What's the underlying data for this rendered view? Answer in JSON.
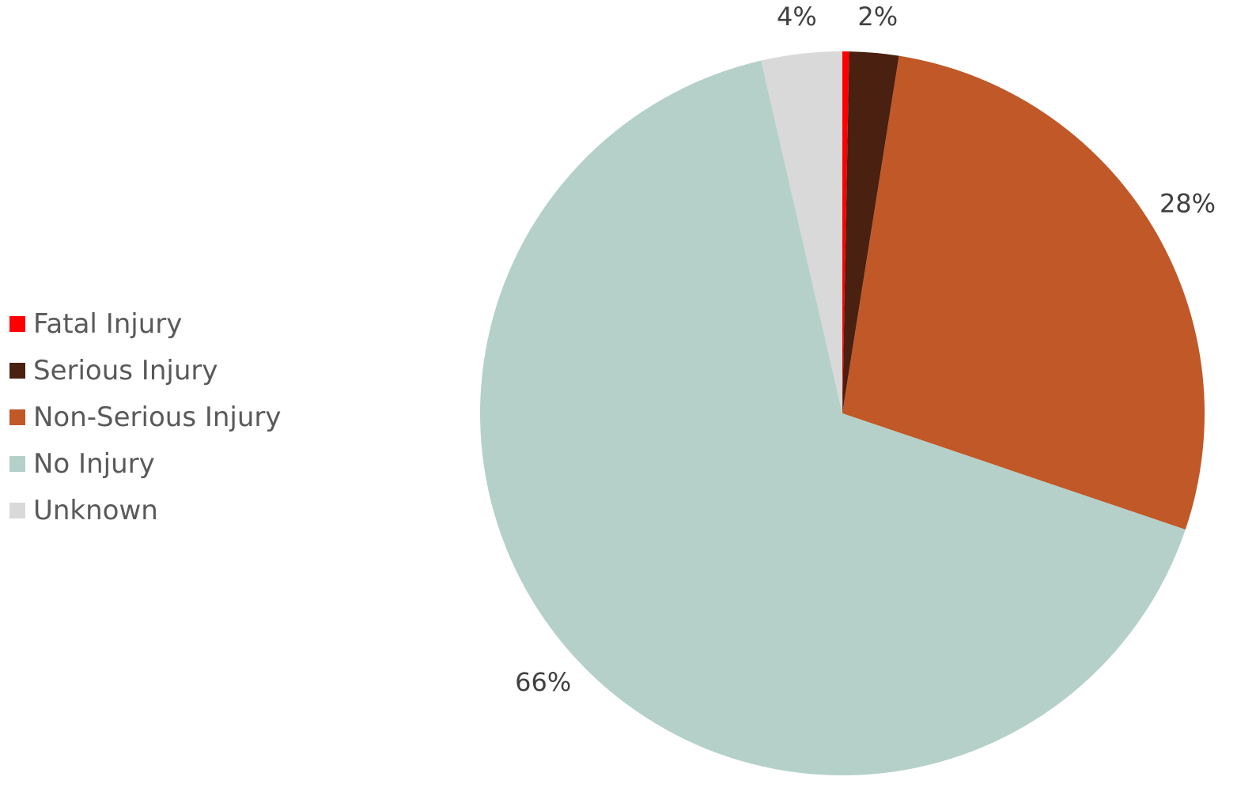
{
  "chart_data": {
    "type": "pie",
    "legend_position": "left",
    "categories": [
      "Fatal Injury",
      "Serious Injury",
      "Non-Serious Injury",
      "No Injury",
      "Unknown"
    ],
    "values": [
      0.3,
      2.2,
      27.7,
      66.2,
      3.6
    ],
    "data_labels": [
      "",
      "2%",
      "28%",
      "66%",
      "4%"
    ],
    "colors": [
      "#FF0000",
      "#4A2010",
      "#C05828",
      "#B4D0C9",
      "#D9D9D9"
    ],
    "start_angle_deg": 0,
    "direction": "clockwise"
  }
}
